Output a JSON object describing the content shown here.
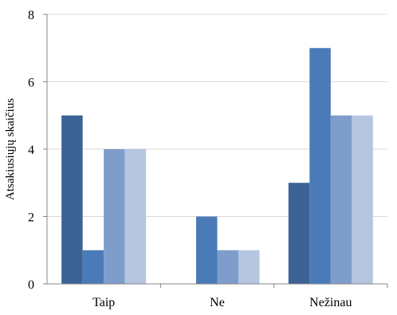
{
  "chart_data": {
    "type": "bar",
    "title": "",
    "xlabel": "",
    "ylabel": "Atsakiusiųjų skaičius",
    "categories": [
      "Taip",
      "Ne",
      "Nežinau"
    ],
    "series": [
      {
        "values": [
          5,
          0,
          3
        ],
        "color": "#3c6296"
      },
      {
        "values": [
          1,
          2,
          7
        ],
        "color": "#4a7ab8"
      },
      {
        "values": [
          4,
          1,
          5
        ],
        "color": "#7f9dca"
      },
      {
        "values": [
          4,
          1,
          5
        ],
        "color": "#b6c6e1"
      }
    ],
    "ylim": [
      0,
      8
    ],
    "yticks": [
      0,
      2,
      4,
      6,
      8
    ],
    "grid": true,
    "legend": "none"
  }
}
